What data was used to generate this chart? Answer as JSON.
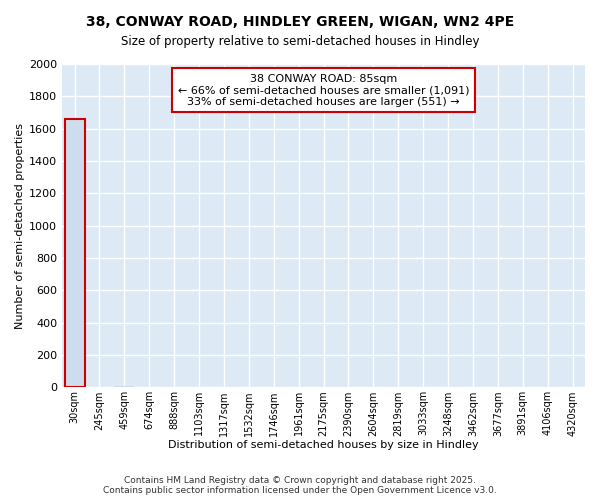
{
  "title1": "38, CONWAY ROAD, HINDLEY GREEN, WIGAN, WN2 4PE",
  "title2": "Size of property relative to semi-detached houses in Hindley",
  "xlabel": "Distribution of semi-detached houses by size in Hindley",
  "ylabel": "Number of semi-detached properties",
  "annotation_title": "38 CONWAY ROAD: 85sqm",
  "annotation_line2": "← 66% of semi-detached houses are smaller (1,091)",
  "annotation_line3": "33% of semi-detached houses are larger (551) →",
  "footer": "Contains HM Land Registry data © Crown copyright and database right 2025.\nContains public sector information licensed under the Open Government Licence v3.0.",
  "ylim": [
    0,
    2000
  ],
  "bar_color": "#ccdded",
  "annotation_box_color": "#cc0000",
  "categories": [
    "30sqm",
    "245sqm",
    "459sqm",
    "674sqm",
    "888sqm",
    "1103sqm",
    "1317sqm",
    "1532sqm",
    "1746sqm",
    "1961sqm",
    "2175sqm",
    "2390sqm",
    "2604sqm",
    "2819sqm",
    "3033sqm",
    "3248sqm",
    "3462sqm",
    "3677sqm",
    "3891sqm",
    "4106sqm",
    "4320sqm"
  ],
  "values": [
    1660,
    5,
    8,
    2,
    3,
    4,
    3,
    2,
    1,
    1,
    1,
    1,
    1,
    1,
    1,
    1,
    1,
    1,
    1,
    1,
    1
  ],
  "property_bin_index": 0,
  "grid_color": "#dde8f0",
  "bg_color": "#ddeaf5"
}
